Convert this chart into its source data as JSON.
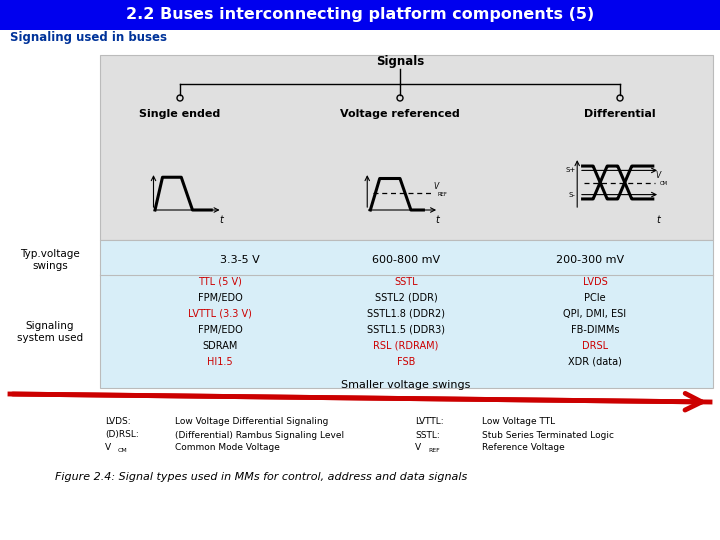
{
  "title": "2.2 Buses interconnecting platform components (5)",
  "title_bg": "#0000EE",
  "title_color": "white",
  "subtitle": "Signaling used in buses",
  "subtitle_color": "#003399",
  "diagram_bg": "#E0E0E0",
  "table_bg": "#D8EEF8",
  "signals_root": "Signals",
  "signal_types": [
    "Single ended",
    "Voltage referenced",
    "Differential"
  ],
  "typ_voltage_label": "Typ.voltage\nswings",
  "typ_voltages": [
    "3.3-5 V",
    "600-800 mV",
    "200-300 mV"
  ],
  "signaling_label": "Signaling\nsystem used",
  "col1_items": [
    {
      "text": "TTL (5 V)",
      "color": "#CC0000"
    },
    {
      "text": "FPM/EDO",
      "color": "#000000"
    },
    {
      "text": "LVTTL (3.3 V)",
      "color": "#CC0000"
    },
    {
      "text": "FPM/EDO",
      "color": "#000000"
    },
    {
      "text": "SDRAM",
      "color": "#000000"
    },
    {
      "text": "HI1.5",
      "color": "#CC0000"
    }
  ],
  "col2_items": [
    {
      "text": "SSTL",
      "color": "#CC0000"
    },
    {
      "text": "SSTL2 (DDR)",
      "color": "#000000"
    },
    {
      "text": "SSTL1.8 (DDR2)",
      "color": "#000000"
    },
    {
      "text": "SSTL1.5 (DDR3)",
      "color": "#000000"
    },
    {
      "text": "RSL (RDRAM)",
      "color": "#CC0000"
    },
    {
      "text": "FSB",
      "color": "#CC0000"
    }
  ],
  "col3_items": [
    {
      "text": "LVDS",
      "color": "#CC0000"
    },
    {
      "text": "PCIe",
      "color": "#000000"
    },
    {
      "text": "QPI, DMI, ESI",
      "color": "#000000"
    },
    {
      "text": "FB-DIMMs",
      "color": "#000000"
    },
    {
      "text": "DRSL",
      "color": "#CC0000"
    },
    {
      "text": "XDR (data)",
      "color": "#000000"
    }
  ],
  "smaller_voltage": "Smaller voltage swings",
  "arrow_color": "#CC0000",
  "abbrev_left_keys": [
    "LVDS:",
    "(D)RSL:",
    "V"
  ],
  "abbrev_left_subs": [
    "",
    "",
    "CM"
  ],
  "abbrev_left_desc": [
    "Low Voltage Differential Signaling",
    "(Differential) Rambus Signaling Level",
    "Common Mode Voltage"
  ],
  "abbrev_right_keys": [
    "LVTTL:",
    "SSTL:",
    "V"
  ],
  "abbrev_right_subs": [
    "",
    "",
    "REF"
  ],
  "abbrev_right_desc": [
    "Low Voltage TTL",
    "Stub Series Terminated Logic",
    "Reference Voltage"
  ],
  "figure_caption": "Figure 2.4: Signal types used in MMs for control, address and data signals"
}
